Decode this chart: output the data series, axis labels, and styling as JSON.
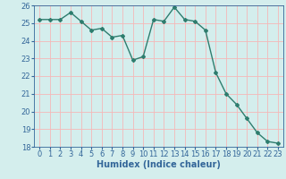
{
  "x": [
    0,
    1,
    2,
    3,
    4,
    5,
    6,
    7,
    8,
    9,
    10,
    11,
    12,
    13,
    14,
    15,
    16,
    17,
    18,
    19,
    20,
    21,
    22,
    23
  ],
  "y": [
    25.2,
    25.2,
    25.2,
    25.6,
    25.1,
    24.6,
    24.7,
    24.2,
    24.3,
    22.9,
    23.1,
    25.2,
    25.1,
    25.9,
    25.2,
    25.1,
    24.6,
    22.2,
    21.0,
    20.4,
    19.6,
    18.8,
    18.3,
    18.2
  ],
  "ylim": [
    18,
    26
  ],
  "xlim": [
    -0.5,
    23.5
  ],
  "yticks": [
    18,
    19,
    20,
    21,
    22,
    23,
    24,
    25,
    26
  ],
  "xticks": [
    0,
    1,
    2,
    3,
    4,
    5,
    6,
    7,
    8,
    9,
    10,
    11,
    12,
    13,
    14,
    15,
    16,
    17,
    18,
    19,
    20,
    21,
    22,
    23
  ],
  "xlabel": "Humidex (Indice chaleur)",
  "bg_color": "#d4eeed",
  "line_color": "#2e7d6e",
  "grid_color": "#f5b8b8",
  "tick_label_color": "#336699",
  "xlabel_color": "#336699",
  "xlabel_fontsize": 7,
  "tick_fontsize": 6,
  "line_width": 1.0,
  "marker": "D",
  "marker_size": 2.0
}
